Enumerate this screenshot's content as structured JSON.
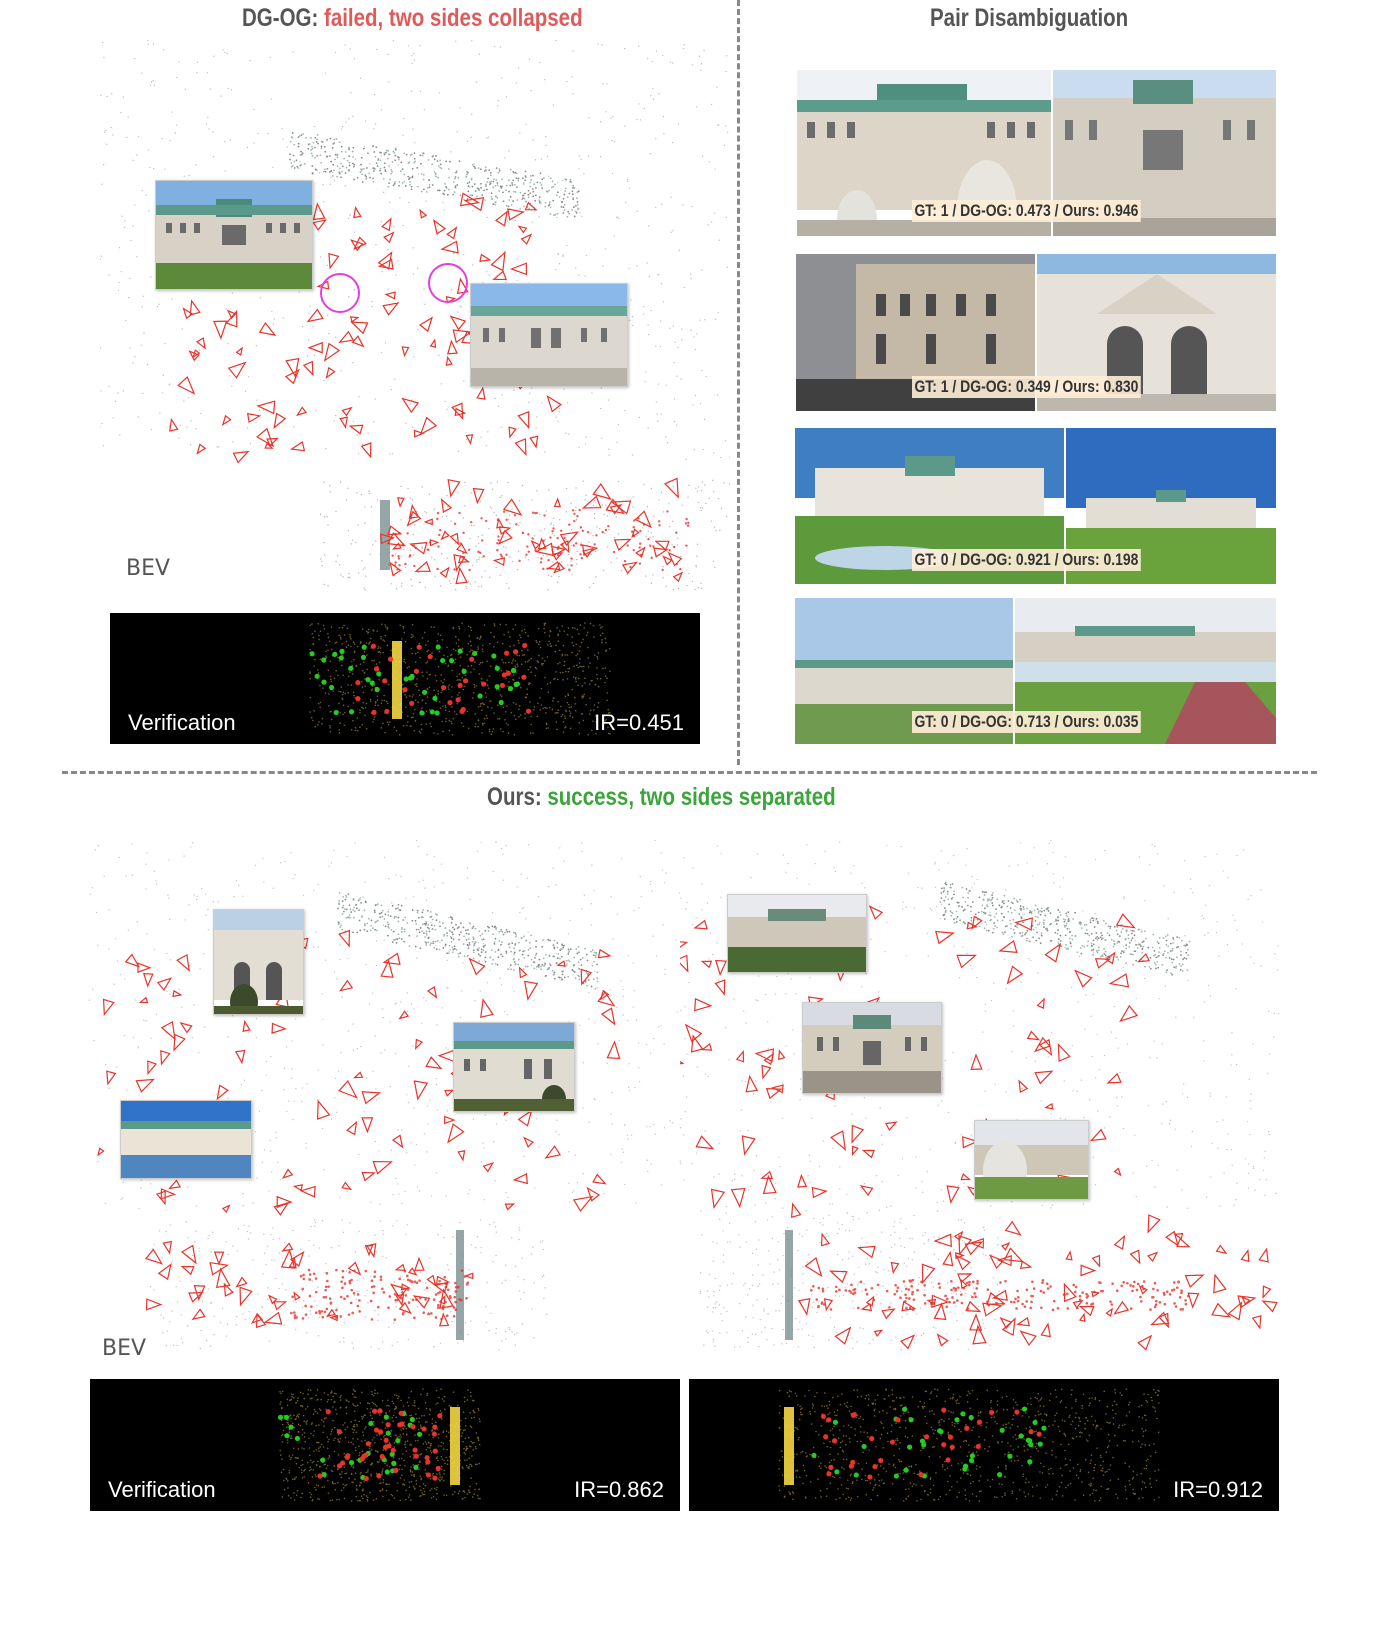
{
  "top_left": {
    "title_prefix": "DG-OG:",
    "title_status": "failed, two sides collapsed",
    "bev_label": "BEV",
    "verification_label": "Verification",
    "ir": "IR=0.451"
  },
  "top_right": {
    "title": "Pair Disambiguation",
    "pairs": [
      {
        "score": "GT: 1 / DG-OG: 0.473 / Ours: 0.946"
      },
      {
        "score": "GT: 1 /  DG-OG: 0.349 / Ours: 0.830"
      },
      {
        "score": "GT: 0 /  DG-OG: 0.921  / Ours: 0.198"
      },
      {
        "score": "GT: 0 /  DG-OG: 0.713 / Ours: 0.035"
      }
    ]
  },
  "bottom": {
    "title_prefix": "Ours:",
    "title_status": "success, two sides separated",
    "bev_label": "BEV",
    "verification_label": "Verification",
    "ir_left": "IR=0.862",
    "ir_right": "IR=0.912"
  },
  "colors": {
    "fail": "#e05a5a",
    "success": "#3aa53a",
    "camera": "#e8332a",
    "highlight": "#e040e0",
    "match_yellow": "#f5d742",
    "inlier_green": "#22cc22"
  }
}
